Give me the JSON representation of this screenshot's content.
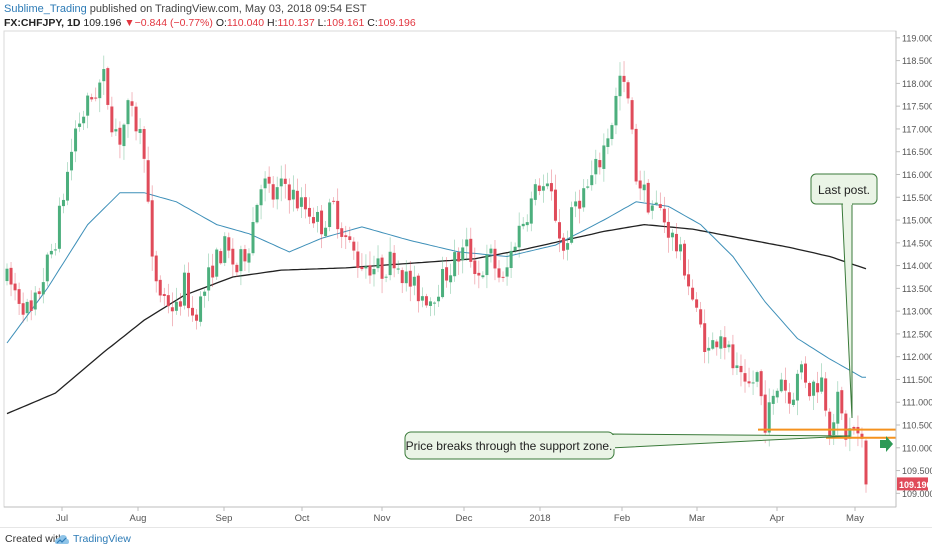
{
  "header": {
    "author": "Sublime_Trading",
    "published": " published on TradingView.com, May 03, 2018 09:54 EST"
  },
  "ohlc": {
    "symbol": "FX:CHFJPY, 1D",
    "last": "109.196",
    "change": "−0.844 (−0.77%)",
    "open_label": "O:",
    "open": "110.040",
    "high_label": "H:",
    "high": "110.137",
    "low_label": "L:",
    "low": "109.161",
    "close_label": "C:",
    "close": "109.196",
    "down_arrow": "▼"
  },
  "footer": {
    "created_with": "Created with",
    "brand": "TradingView"
  },
  "colors": {
    "up": "#4caf7d",
    "down": "#e04b5a",
    "ma_fast": "#3d8fb8",
    "ma_slow": "#222222",
    "support": "#f5921e",
    "callout_fill": "#eaf4e6",
    "callout_stroke": "#3a7a3a"
  },
  "chart_data": {
    "type": "candlestick",
    "ylim": [
      108.7,
      119.15
    ],
    "y_ticks": [
      "119.000",
      "118.500",
      "118.000",
      "117.500",
      "117.000",
      "116.500",
      "116.000",
      "115.500",
      "115.000",
      "114.500",
      "114.000",
      "113.500",
      "113.000",
      "112.500",
      "112.000",
      "111.500",
      "111.000",
      "110.500",
      "110.000",
      "109.500",
      "109.000"
    ],
    "x_ticks": [
      "Jul",
      "Aug",
      "Sep",
      "Oct",
      "Nov",
      "Dec",
      "2018",
      "Feb",
      "Mar",
      "Apr",
      "May"
    ],
    "last_price_label": "109.196",
    "annotations": [
      {
        "text": "Last post."
      },
      {
        "text": "Price breaks through the support zone."
      }
    ],
    "support_zone": {
      "upper": 110.4,
      "lower": 110.22
    },
    "waypoints": [
      [
        0,
        113.7
      ],
      [
        6,
        112.9
      ],
      [
        12,
        114.6
      ],
      [
        17,
        117.0
      ],
      [
        21,
        117.7
      ],
      [
        24,
        118.1
      ],
      [
        26,
        117.2
      ],
      [
        28,
        116.8
      ],
      [
        30,
        117.4
      ],
      [
        32,
        117.1
      ],
      [
        34,
        116.6
      ],
      [
        36,
        114.0
      ],
      [
        38,
        113.4
      ],
      [
        42,
        113.0
      ],
      [
        44,
        113.6
      ],
      [
        46,
        112.9
      ],
      [
        48,
        113.2
      ],
      [
        51,
        114.0
      ],
      [
        54,
        114.4
      ],
      [
        57,
        113.9
      ],
      [
        60,
        114.5
      ],
      [
        63,
        115.9
      ],
      [
        66,
        115.5
      ],
      [
        69,
        115.8
      ],
      [
        72,
        115.4
      ],
      [
        75,
        115.2
      ],
      [
        78,
        114.9
      ],
      [
        81,
        115.3
      ],
      [
        84,
        114.6
      ],
      [
        87,
        114.1
      ],
      [
        90,
        114.0
      ],
      [
        93,
        113.9
      ],
      [
        96,
        114.2
      ],
      [
        99,
        113.7
      ],
      [
        102,
        113.4
      ],
      [
        105,
        113.3
      ],
      [
        108,
        113.7
      ],
      [
        111,
        114.1
      ],
      [
        114,
        114.4
      ],
      [
        117,
        113.8
      ],
      [
        120,
        114.2
      ],
      [
        123,
        113.6
      ],
      [
        126,
        114.6
      ],
      [
        129,
        115.2
      ],
      [
        132,
        115.8
      ],
      [
        135,
        115.5
      ],
      [
        138,
        114.3
      ],
      [
        141,
        115.4
      ],
      [
        144,
        115.7
      ],
      [
        147,
        116.3
      ],
      [
        150,
        117.2
      ],
      [
        152,
        118.1
      ],
      [
        154,
        117.6
      ],
      [
        156,
        116.0
      ],
      [
        159,
        115.4
      ],
      [
        162,
        115.2
      ],
      [
        165,
        114.6
      ],
      [
        168,
        114.0
      ],
      [
        171,
        112.9
      ],
      [
        174,
        112.1
      ],
      [
        177,
        112.6
      ],
      [
        180,
        111.8
      ],
      [
        183,
        111.2
      ],
      [
        186,
        111.6
      ],
      [
        188,
        110.6
      ],
      [
        190,
        111.0
      ],
      [
        192,
        111.6
      ],
      [
        194,
        111.0
      ],
      [
        197,
        111.8
      ],
      [
        199,
        111.3
      ],
      [
        202,
        111.5
      ],
      [
        204,
        110.5
      ],
      [
        206,
        111.0
      ],
      [
        208,
        110.3
      ],
      [
        210,
        110.4
      ],
      [
        212,
        110.05
      ],
      [
        213,
        109.2
      ]
    ],
    "ma_fast": [
      [
        0,
        112.3
      ],
      [
        10,
        113.5
      ],
      [
        20,
        114.9
      ],
      [
        28,
        115.6
      ],
      [
        34,
        115.6
      ],
      [
        42,
        115.4
      ],
      [
        52,
        114.9
      ],
      [
        60,
        114.7
      ],
      [
        70,
        114.3
      ],
      [
        78,
        114.6
      ],
      [
        88,
        114.85
      ],
      [
        100,
        114.55
      ],
      [
        112,
        114.3
      ],
      [
        124,
        114.2
      ],
      [
        136,
        114.45
      ],
      [
        148,
        115.0
      ],
      [
        156,
        115.4
      ],
      [
        164,
        115.3
      ],
      [
        172,
        114.9
      ],
      [
        180,
        114.2
      ],
      [
        188,
        113.2
      ],
      [
        196,
        112.4
      ],
      [
        204,
        111.95
      ],
      [
        212,
        111.55
      ]
    ],
    "ma_slow": [
      [
        0,
        110.75
      ],
      [
        12,
        111.2
      ],
      [
        24,
        112.1
      ],
      [
        34,
        112.8
      ],
      [
        44,
        113.35
      ],
      [
        56,
        113.75
      ],
      [
        68,
        113.9
      ],
      [
        84,
        113.95
      ],
      [
        100,
        114.05
      ],
      [
        116,
        114.15
      ],
      [
        128,
        114.35
      ],
      [
        138,
        114.55
      ],
      [
        148,
        114.75
      ],
      [
        158,
        114.9
      ],
      [
        170,
        114.8
      ],
      [
        182,
        114.6
      ],
      [
        194,
        114.4
      ],
      [
        204,
        114.2
      ],
      [
        214,
        113.9
      ]
    ]
  }
}
